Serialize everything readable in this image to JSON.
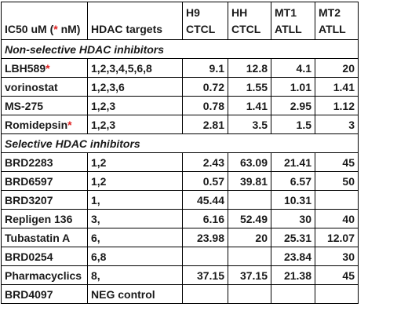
{
  "header": {
    "ic50_prefix": "IC50 uM (",
    "ic50_star": "*",
    "ic50_suffix": " nM)",
    "targets": "HDAC targets",
    "h9_line1": "H9",
    "h9_line2": "CTCL",
    "hh_line1": "HH",
    "hh_line2": "CTCL",
    "mt1_line1": "MT1",
    "mt1_line2": "ATLL",
    "mt2_line1": "MT2",
    "mt2_line2": "ATLL"
  },
  "sections": {
    "nonselective": "Non-selective HDAC inhibitors",
    "selective": "Selective HDAC inhibitors"
  },
  "rows": [
    {
      "name": "LBH589",
      "star": "*",
      "targets": "1,2,3,4,5,6,8",
      "h9": "9.1",
      "hh": "12.8",
      "mt1": "4.1",
      "mt2": "20"
    },
    {
      "name": "vorinostat",
      "star": "",
      "targets": "1,2,3,6",
      "h9": "0.72",
      "hh": "1.55",
      "mt1": "1.01",
      "mt2": "1.41"
    },
    {
      "name": "MS-275",
      "star": "",
      "targets": "1,2,3",
      "h9": "0.78",
      "hh": "1.41",
      "mt1": "2.95",
      "mt2": "1.12"
    },
    {
      "name": "Romidepsin",
      "star": "*",
      "targets": "1,2,3",
      "h9": "2.81",
      "hh": "3.5",
      "mt1": "1.5",
      "mt2": "3"
    },
    {
      "name": "BRD2283",
      "star": "",
      "targets": "1,2",
      "h9": "2.43",
      "hh": "63.09",
      "mt1": "21.41",
      "mt2": "45"
    },
    {
      "name": "BRD6597",
      "star": "",
      "targets": "1,2",
      "h9": "0.57",
      "hh": "39.81",
      "mt1": "6.57",
      "mt2": "50"
    },
    {
      "name": "BRD3207",
      "star": "",
      "targets": "1,",
      "h9": "45.44",
      "hh": "",
      "mt1": "10.31",
      "mt2": ""
    },
    {
      "name": "Repligen 136",
      "star": "",
      "targets": "3,",
      "h9": "6.16",
      "hh": "52.49",
      "mt1": "30",
      "mt2": "40"
    },
    {
      "name": "Tubastatin A",
      "star": "",
      "targets": "6,",
      "h9": "23.98",
      "hh": "20",
      "mt1": "25.31",
      "mt2": "12.07"
    },
    {
      "name": "BRD0254",
      "star": "",
      "targets": "6,8",
      "h9": "",
      "hh": "",
      "mt1": "23.84",
      "mt2": "30"
    },
    {
      "name": "Pharmacyclics",
      "star": "",
      "targets": "8,",
      "h9": "37.15",
      "hh": "37.15",
      "mt1": "21.38",
      "mt2": "45"
    },
    {
      "name": "BRD4097",
      "star": "",
      "targets": "NEG control",
      "h9": "",
      "hh": "",
      "mt1": "",
      "mt2": ""
    }
  ]
}
